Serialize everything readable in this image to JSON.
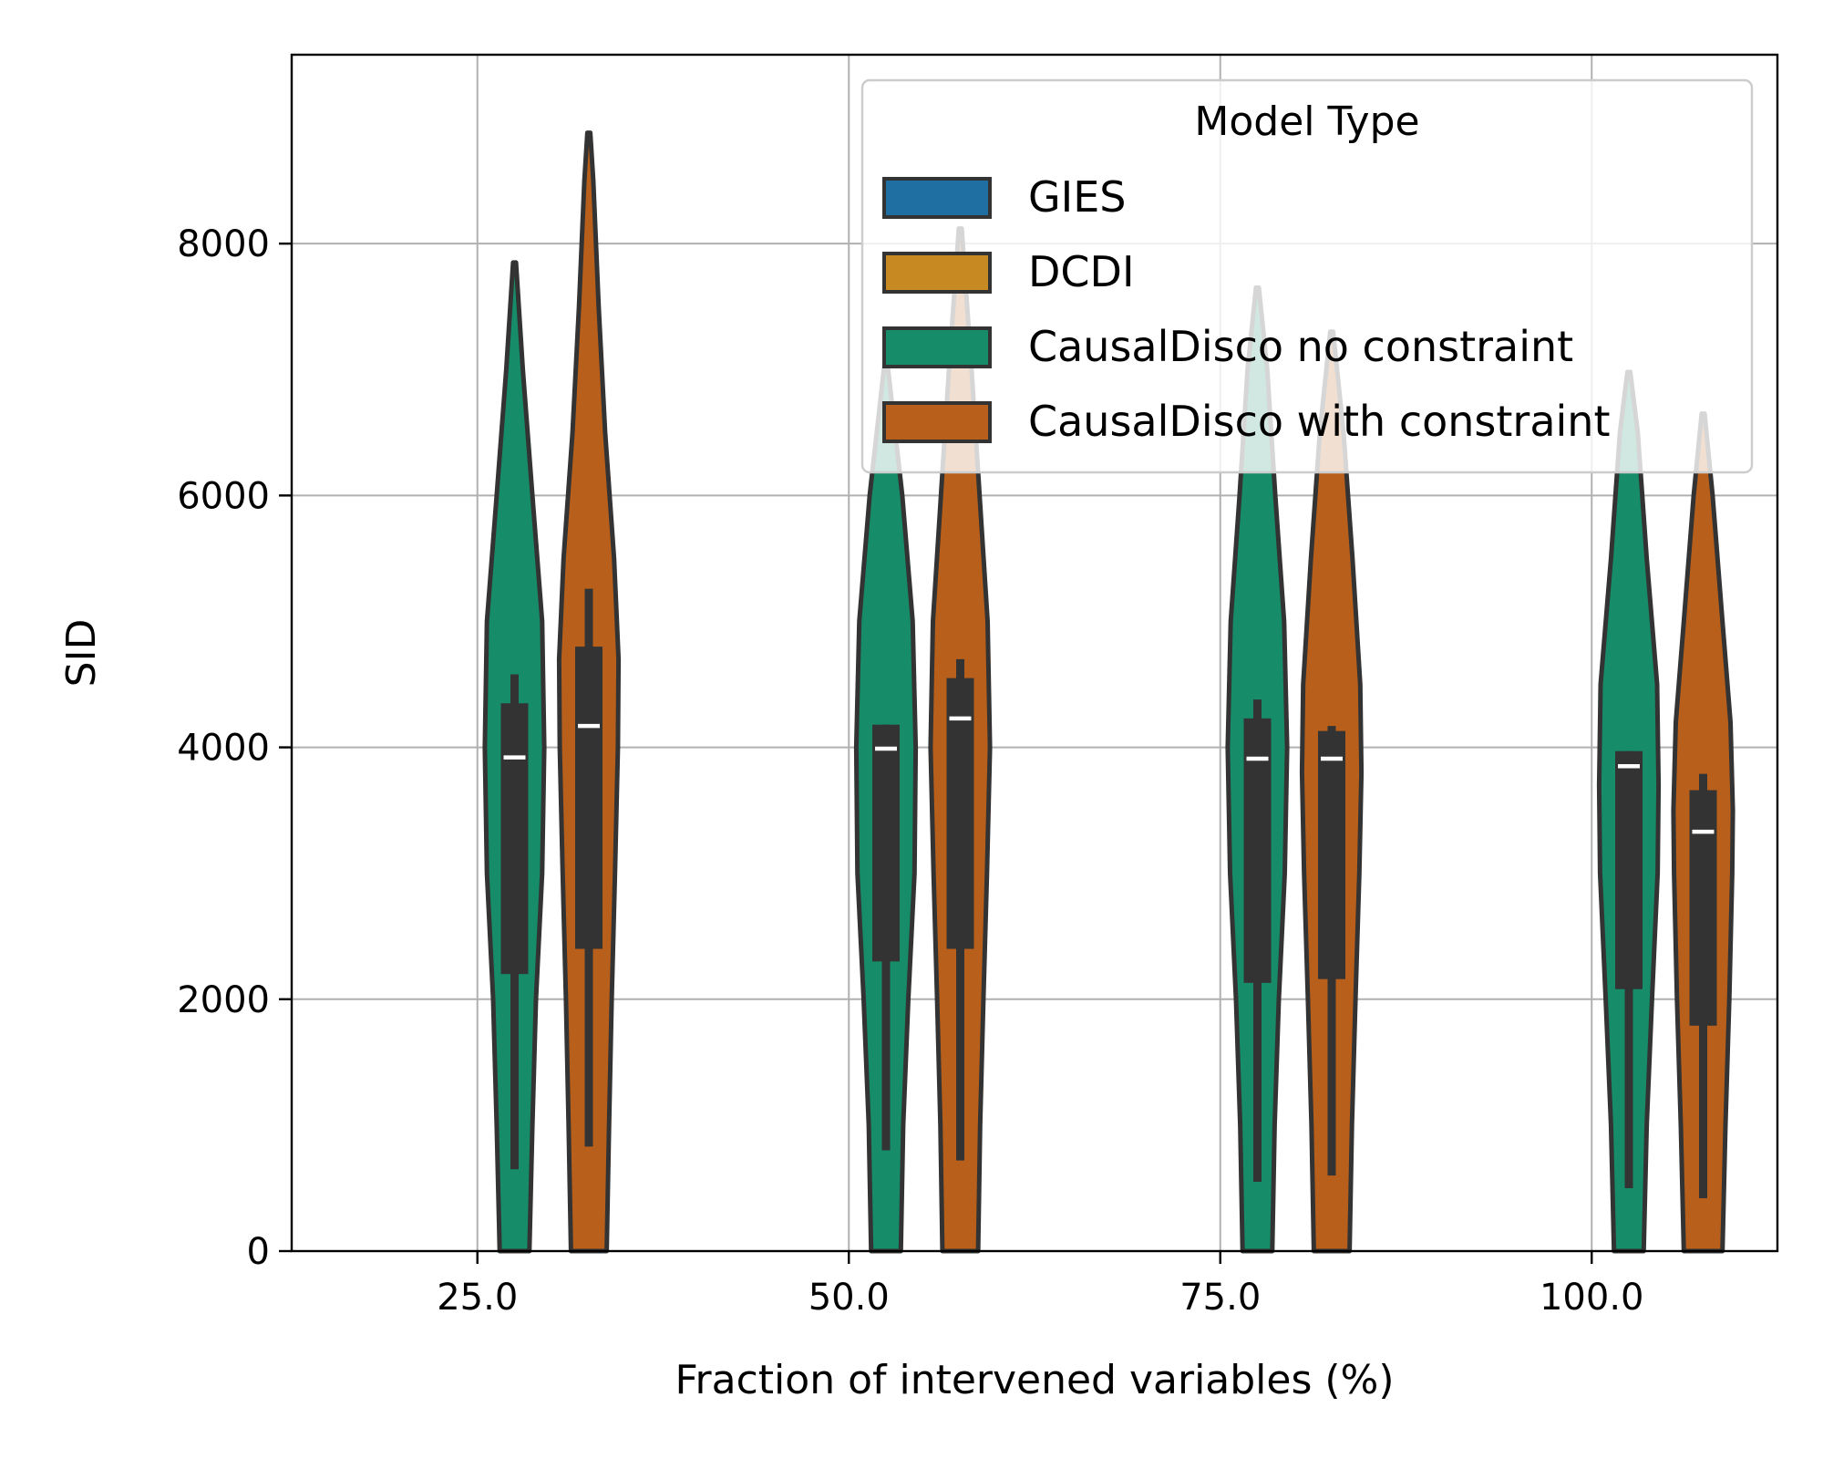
{
  "chart_data": {
    "type": "violin",
    "title": "",
    "xlabel": "Fraction of intervened variables (%)",
    "ylabel": "SID",
    "categories": [
      "25.0",
      "50.0",
      "75.0",
      "100.0"
    ],
    "x_values": [
      25,
      50,
      75,
      100
    ],
    "xlim": [
      12.5,
      112.5
    ],
    "ylim": [
      0,
      9500
    ],
    "yticks": [
      0,
      2000,
      4000,
      6000,
      8000
    ],
    "grid": true,
    "legend": {
      "title": "Model Type",
      "position": "top-right",
      "entries": [
        {
          "label": "GIES",
          "color": "#1f6fa3"
        },
        {
          "label": "DCDI",
          "color": "#c78a22"
        },
        {
          "label": "CausalDisco no constraint",
          "color": "#168c68"
        },
        {
          "label": "CausalDisco with constraint",
          "color": "#b8601b"
        }
      ]
    },
    "series": [
      {
        "name": "CausalDisco no constraint",
        "color": "#168c68",
        "offset": 2.5,
        "groups": [
          {
            "x": 25,
            "max": 7850,
            "q3": 4350,
            "median": 3920,
            "q1": 2200,
            "whisker_low": 650,
            "whisker_high": 4580,
            "profile": [
              [
                0,
                0.5
              ],
              [
                1000,
                0.6
              ],
              [
                2000,
                0.72
              ],
              [
                3000,
                0.93
              ],
              [
                4000,
                1.0
              ],
              [
                5000,
                0.93
              ],
              [
                6000,
                0.6
              ],
              [
                7000,
                0.28
              ],
              [
                7850,
                0.05
              ]
            ]
          },
          {
            "x": 50,
            "max": 7050,
            "q3": 4180,
            "median": 3990,
            "q1": 2300,
            "whisker_low": 800,
            "whisker_high": 4180,
            "profile": [
              [
                0,
                0.5
              ],
              [
                1000,
                0.58
              ],
              [
                2000,
                0.75
              ],
              [
                3000,
                0.96
              ],
              [
                4000,
                1.0
              ],
              [
                5000,
                0.9
              ],
              [
                6000,
                0.55
              ],
              [
                7050,
                0.05
              ]
            ]
          },
          {
            "x": 75,
            "max": 7650,
            "q3": 4230,
            "median": 3910,
            "q1": 2130,
            "whisker_low": 550,
            "whisker_high": 4380,
            "profile": [
              [
                0,
                0.5
              ],
              [
                1000,
                0.58
              ],
              [
                2000,
                0.72
              ],
              [
                3000,
                0.92
              ],
              [
                4000,
                1.0
              ],
              [
                5000,
                0.9
              ],
              [
                6000,
                0.6
              ],
              [
                7000,
                0.33
              ],
              [
                7650,
                0.05
              ]
            ]
          },
          {
            "x": 100,
            "max": 6980,
            "q3": 3970,
            "median": 3850,
            "q1": 2080,
            "whisker_low": 500,
            "whisker_high": 3970,
            "profile": [
              [
                0,
                0.5
              ],
              [
                1000,
                0.6
              ],
              [
                2000,
                0.78
              ],
              [
                3000,
                0.97
              ],
              [
                3700,
                1.0
              ],
              [
                4500,
                0.95
              ],
              [
                5500,
                0.6
              ],
              [
                6500,
                0.3
              ],
              [
                6980,
                0.05
              ]
            ]
          }
        ]
      },
      {
        "name": "CausalDisco with constraint",
        "color": "#b8601b",
        "offset": 7.5,
        "groups": [
          {
            "x": 25,
            "max": 8880,
            "q3": 4800,
            "median": 4170,
            "q1": 2400,
            "whisker_low": 830,
            "whisker_high": 5260,
            "profile": [
              [
                0,
                0.6
              ],
              [
                1000,
                0.68
              ],
              [
                2000,
                0.77
              ],
              [
                3000,
                0.88
              ],
              [
                4000,
                0.98
              ],
              [
                4700,
                1.0
              ],
              [
                5500,
                0.85
              ],
              [
                6500,
                0.55
              ],
              [
                7500,
                0.33
              ],
              [
                8500,
                0.15
              ],
              [
                8880,
                0.05
              ]
            ]
          },
          {
            "x": 50,
            "max": 8120,
            "q3": 4550,
            "median": 4230,
            "q1": 2400,
            "whisker_low": 720,
            "whisker_high": 4700,
            "profile": [
              [
                0,
                0.6
              ],
              [
                1000,
                0.67
              ],
              [
                2000,
                0.78
              ],
              [
                3000,
                0.9
              ],
              [
                4000,
                1.0
              ],
              [
                5000,
                0.92
              ],
              [
                6000,
                0.65
              ],
              [
                7000,
                0.38
              ],
              [
                8120,
                0.05
              ]
            ]
          },
          {
            "x": 75,
            "max": 7300,
            "q3": 4130,
            "median": 3910,
            "q1": 2160,
            "whisker_low": 600,
            "whisker_high": 4170,
            "profile": [
              [
                0,
                0.6
              ],
              [
                1000,
                0.68
              ],
              [
                2000,
                0.8
              ],
              [
                3000,
                0.93
              ],
              [
                3800,
                1.0
              ],
              [
                4500,
                0.96
              ],
              [
                5500,
                0.7
              ],
              [
                6500,
                0.4
              ],
              [
                7300,
                0.05
              ]
            ]
          },
          {
            "x": 100,
            "max": 6650,
            "q3": 3660,
            "median": 3330,
            "q1": 1790,
            "whisker_low": 420,
            "whisker_high": 3790,
            "profile": [
              [
                0,
                0.65
              ],
              [
                1000,
                0.75
              ],
              [
                2000,
                0.88
              ],
              [
                3000,
                0.98
              ],
              [
                3500,
                1.0
              ],
              [
                4200,
                0.92
              ],
              [
                5000,
                0.65
              ],
              [
                6000,
                0.32
              ],
              [
                6650,
                0.05
              ]
            ]
          }
        ]
      }
    ]
  }
}
